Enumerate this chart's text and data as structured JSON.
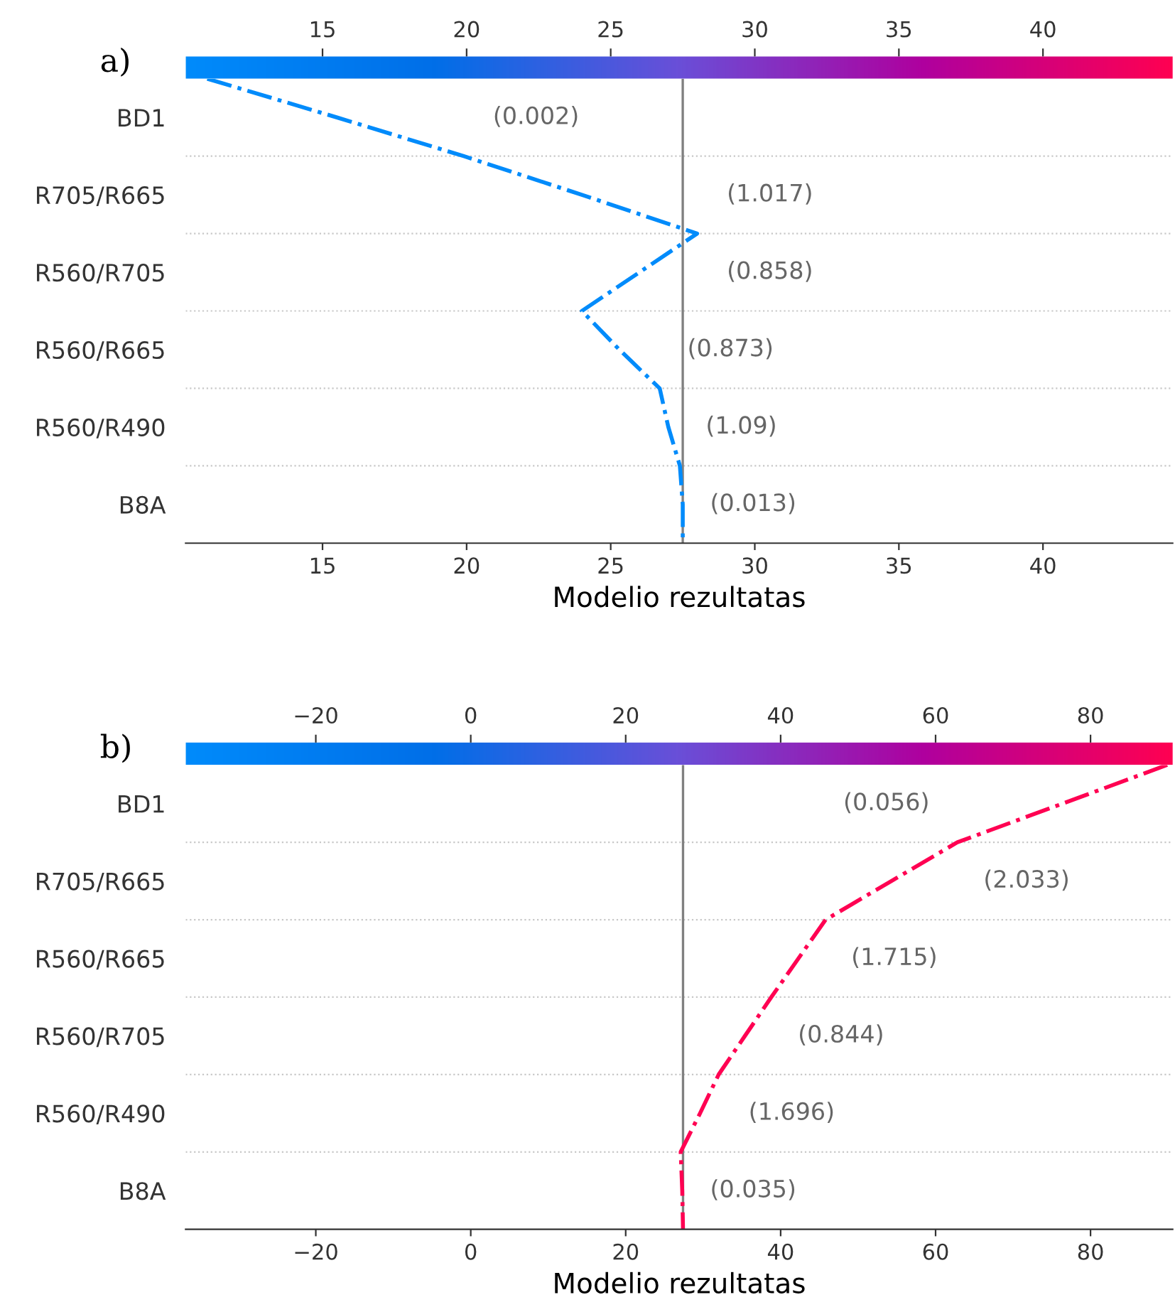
{
  "chart_data": [
    {
      "type": "line",
      "title": "a)",
      "xlabel": "Modelio rezultatas",
      "orientation": "horizontal",
      "xlim": [
        10.25,
        44.5
      ],
      "xticks": [
        15,
        20,
        25,
        30,
        35,
        40
      ],
      "x2lim": [
        10.25,
        44.5
      ],
      "x2ticks": [
        15,
        20,
        25,
        30,
        35,
        40
      ],
      "categories": [
        null,
        "BD1",
        null,
        "R705/R665",
        null,
        "R560/R705",
        null,
        "R560/R665",
        null,
        "R560/R490",
        null,
        "B8A",
        null
      ],
      "line_style": "dashdot",
      "marker": "none",
      "grid": "y",
      "legend": false,
      "series": [
        {
          "color": "#008bfb",
          "values": [
            11.0,
            15.5,
            19.9,
            24.0,
            28.0,
            26.0,
            24.0,
            25.3,
            26.7,
            27.0,
            27.4,
            27.5,
            27.5
          ]
        }
      ],
      "ref_lines": [
        {
          "axis": "x",
          "value": 27.5,
          "color": "#808080",
          "line_style": "solid"
        }
      ],
      "annotations": [
        "(0.002)",
        "(1.017)",
        "(0.858)",
        "(0.873)",
        "(1.09)",
        "(0.013)"
      ]
    },
    {
      "type": "line",
      "title": "b)",
      "xlabel": "Modelio rezultatas",
      "orientation": "horizontal",
      "xlim": [
        -36.8,
        90.6
      ],
      "xticks": [
        {
          "value": -20,
          "label": "−20"
        },
        0,
        20,
        40,
        60,
        80
      ],
      "x2lim": [
        -36.8,
        90.6
      ],
      "x2ticks": [
        {
          "value": -20,
          "label": "−20"
        },
        0,
        20,
        40,
        60,
        80
      ],
      "categories": [
        null,
        "BD1",
        null,
        "R705/R665",
        null,
        "R560/R665",
        null,
        "R560/R705",
        null,
        "R560/R490",
        null,
        "B8A",
        null
      ],
      "line_style": "dashdot",
      "marker": "none",
      "grid": "y",
      "legend": false,
      "series": [
        {
          "color": "#ff0052",
          "values": [
            89.9,
            76.4,
            62.8,
            54.3,
            45.8,
            42.3,
            38.8,
            35.4,
            32.0,
            29.6,
            27.1,
            27.3,
            27.4
          ]
        }
      ],
      "ref_lines": [
        {
          "axis": "x",
          "value": 27.4,
          "color": "#808080",
          "line_style": "solid"
        }
      ],
      "annotations": [
        "(0.056)",
        "(2.033)",
        "(1.715)",
        "(0.844)",
        "(1.696)",
        "(0.035)"
      ]
    }
  ]
}
